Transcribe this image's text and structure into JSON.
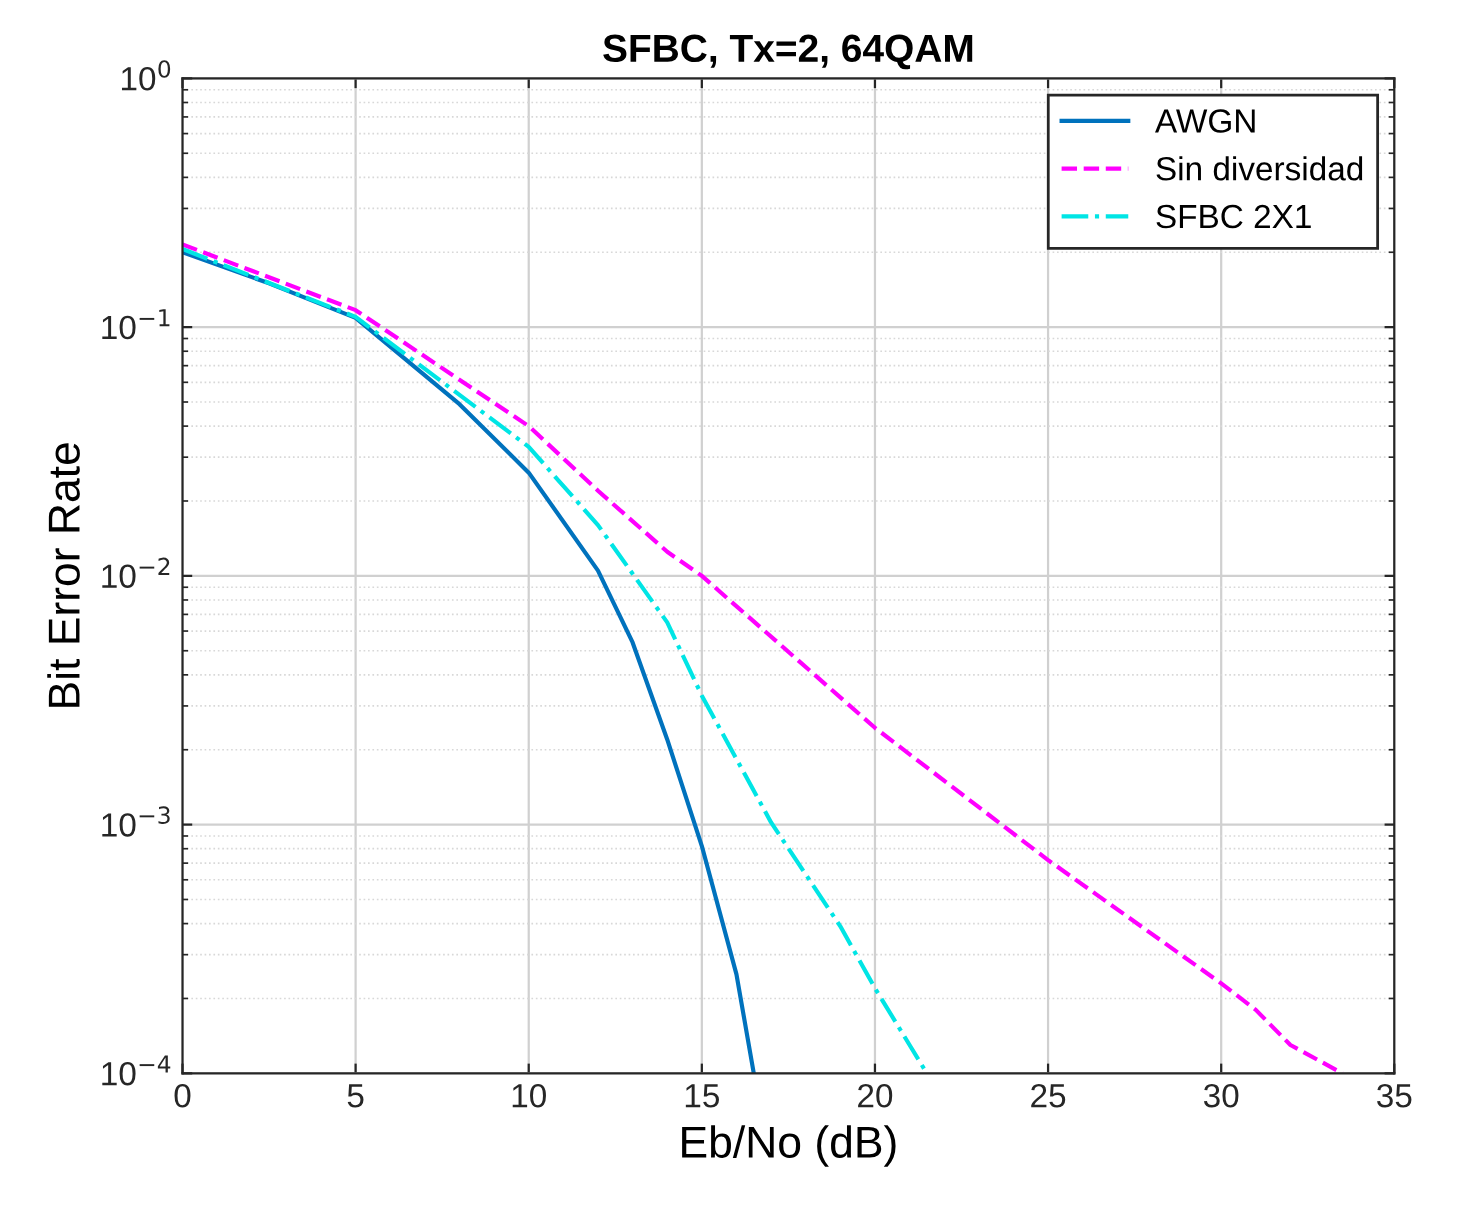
{
  "chart_data": {
    "type": "line",
    "title": "SFBC, Tx=2, 64QAM",
    "xlabel": "Eb/No (dB)",
    "ylabel": "Bit Error Rate",
    "log": "y",
    "grid": true,
    "legend": "top right",
    "xlim": [
      0,
      35
    ],
    "xticks": [
      0,
      5,
      10,
      15,
      20,
      25,
      30,
      35
    ],
    "ylim": [
      0.0001,
      1
    ],
    "yticks": [
      {
        "value": 0.0001,
        "label": "10$^{−4}$"
      },
      {
        "value": 0.001,
        "label": "10$^{−3}$"
      },
      {
        "value": 0.01,
        "label": "10$^{−2}$"
      },
      {
        "value": 0.1,
        "label": "10$^{−1}$"
      },
      {
        "value": 1,
        "label": "10$^{0}$"
      }
    ],
    "series": [
      {
        "name": "AWGN",
        "color": "#0072bd",
        "line_style": "solid",
        "x": [
          0,
          2.5,
          5,
          8,
          10,
          12,
          13,
          14,
          15,
          16,
          16.5
        ],
        "values": [
          0.2,
          0.15,
          0.109,
          0.049,
          0.026,
          0.0105,
          0.0054,
          0.0022,
          0.00082,
          0.00025,
          0.0001
        ]
      },
      {
        "name": "Sin diversidad",
        "color": "#ff00ff",
        "line_style": "dashed",
        "x": [
          0,
          5,
          10,
          12,
          14,
          15,
          20,
          25,
          30,
          31,
          32,
          33.5
        ],
        "values": [
          0.215,
          0.117,
          0.04,
          0.022,
          0.0125,
          0.01,
          0.00245,
          0.00072,
          0.00023,
          0.00018,
          0.00013,
          0.0001
        ]
      },
      {
        "name": "SFBC 2X1",
        "color": "#00e5e5",
        "line_style": "dashdot",
        "x": [
          0,
          5,
          10,
          12,
          14,
          15,
          17,
          19,
          20,
          21,
          21.5
        ],
        "values": [
          0.206,
          0.11,
          0.033,
          0.016,
          0.0065,
          0.0033,
          0.00102,
          0.00039,
          0.00022,
          0.00013,
          0.0001
        ]
      }
    ]
  }
}
